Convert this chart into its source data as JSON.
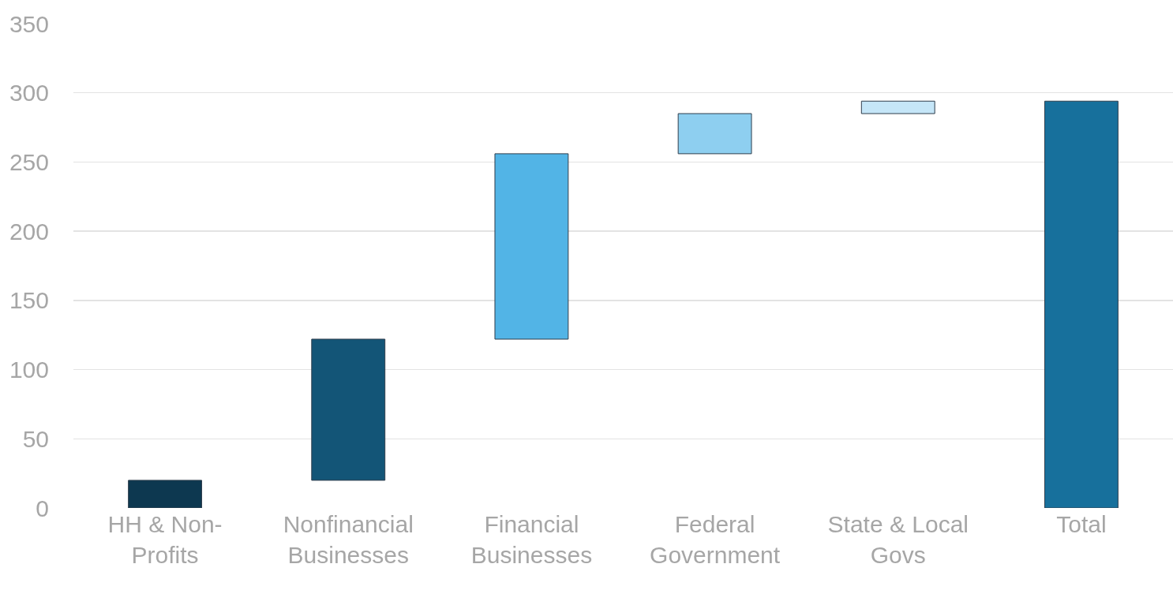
{
  "chart_data": {
    "type": "bar",
    "categories": [
      "HH & Non-Profits",
      "Nonfinancial Businesses",
      "Financial Businesses",
      "Federal Government",
      "State & Local Govs",
      "Total"
    ],
    "values": [
      20,
      102,
      134,
      29,
      9,
      294
    ],
    "base": [
      0,
      20,
      122,
      256,
      285,
      0
    ],
    "colors": [
      "#0d3850",
      "#135577",
      "#52b4e6",
      "#8ecff0",
      "#c5e6f8",
      "#17709c"
    ],
    "ylim": [
      0,
      350
    ],
    "yticks": [
      0,
      50,
      100,
      150,
      200,
      250,
      300,
      350
    ],
    "grid": "y"
  }
}
